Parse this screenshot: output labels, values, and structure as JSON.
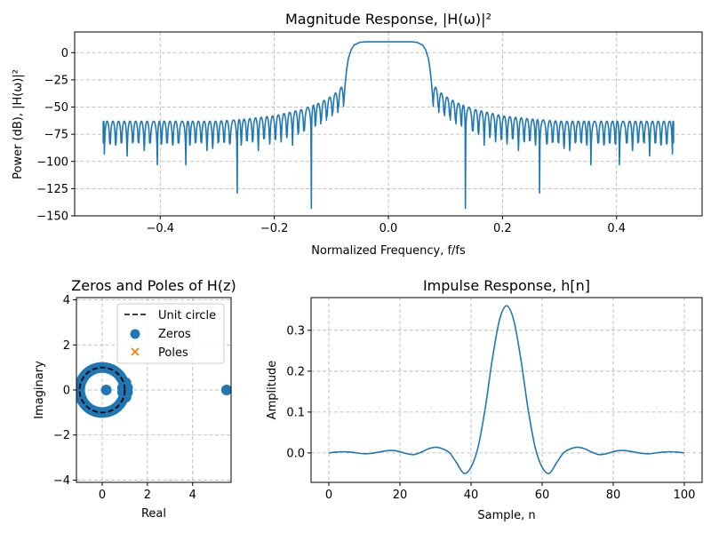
{
  "chart_data": [
    {
      "type": "line",
      "title": "Magnitude Response, |H(ω)|²",
      "xlabel": "Normalized Frequency, f/fs",
      "ylabel": "Power (dB), |H(ω)|²",
      "xlim": [
        -0.55,
        0.55
      ],
      "ylim": [
        -150,
        19
      ],
      "xticks": [
        "−0.4",
        "−0.2",
        "0.0",
        "0.2",
        "0.4"
      ],
      "xtick_values": [
        -0.4,
        -0.2,
        0.0,
        0.2,
        0.4
      ],
      "yticks": [
        "0",
        "−25",
        "−50",
        "−75",
        "−100",
        "−125",
        "−150"
      ],
      "ytick_values": [
        0,
        -25,
        -50,
        -75,
        -100,
        -125,
        -150
      ],
      "grid": true,
      "color": "#1f77b4",
      "symmetric": true,
      "passband": {
        "f": [
          0,
          0.04,
          0.05,
          0.06,
          0.065,
          0.07,
          0.073,
          0.076,
          0.078
        ],
        "db": [
          10,
          10,
          9.5,
          7,
          3,
          -5,
          -15,
          -30,
          -45
        ]
      },
      "sidelobe_peak_envelope": {
        "f": [
          0.078,
          0.09,
          0.1,
          0.12,
          0.15,
          0.2,
          0.25,
          0.3,
          0.5
        ],
        "db": [
          -29,
          -36,
          -40,
          -46,
          -52,
          -58,
          -61,
          -63,
          -63
        ]
      },
      "null_f": [
        0.078,
        0.088,
        0.098,
        0.108,
        0.118,
        0.128,
        0.135,
        0.148,
        0.158,
        0.168,
        0.178,
        0.188,
        0.198,
        0.208,
        0.218,
        0.228,
        0.238,
        0.248,
        0.258,
        0.265,
        0.278,
        0.288,
        0.298,
        0.308,
        0.318,
        0.328,
        0.338,
        0.348,
        0.355,
        0.368,
        0.378,
        0.388,
        0.398,
        0.405,
        0.418,
        0.428,
        0.438,
        0.448,
        0.458,
        0.468,
        0.478,
        0.488,
        0.498
      ],
      "null_db": [
        -45,
        -50,
        -55,
        -58,
        -62,
        -66,
        -143,
        -72,
        -75,
        -85,
        -78,
        -82,
        -80,
        -84,
        -78,
        -90,
        -82,
        -80,
        -85,
        -129,
        -84,
        -80,
        -82,
        -88,
        -90,
        -78,
        -82,
        -85,
        -103,
        -80,
        -85,
        -78,
        -84,
        -103,
        -80,
        -90,
        -82,
        -78,
        -95,
        -80,
        -85,
        -84,
        -93
      ]
    },
    {
      "type": "scatter",
      "title": "Zeros and Poles of H(z)",
      "xlabel": "Real",
      "ylabel": "Imaginary",
      "xlim": [
        -1.14,
        5.7
      ],
      "ylim": [
        -4.1,
        4.1
      ],
      "xticks": [
        "0",
        "2",
        "4"
      ],
      "xtick_values": [
        0,
        2,
        4
      ],
      "yticks": [
        "−4",
        "−2",
        "0",
        "2",
        "4"
      ],
      "ytick_values": [
        -4,
        -2,
        0,
        2,
        4
      ],
      "grid": true,
      "legend": {
        "position": "upper right",
        "entries": [
          "Unit circle",
          "Zeros",
          "Poles"
        ]
      },
      "unit_circle": {
        "color": "#000000",
        "style": "dashed"
      },
      "zeros_color": "#1f77b4",
      "poles_color": "#ff7f0e",
      "zero_angles_deg_on_unit_circle": [
        27,
        30.6,
        34.2,
        37.8,
        41.4,
        45,
        48.6,
        52.2,
        55.8,
        59.4,
        63,
        66.6,
        70.2,
        73.8,
        77.4,
        81,
        84.6,
        88.2,
        91.8,
        95.4,
        99,
        102.6,
        106.2,
        109.8,
        113.4,
        117,
        120.6,
        124.2,
        127.8,
        131.4,
        135,
        138.6,
        142.2,
        145.8,
        149.4,
        153,
        156.6,
        160.2,
        163.8,
        167.4,
        171,
        174.6,
        178.2
      ],
      "other_zeros": [
        [
          0.18,
          0
        ],
        [
          5.5,
          0
        ],
        [
          0.95,
          0.25
        ],
        [
          0.95,
          -0.25
        ],
        [
          1.05,
          0.32
        ],
        [
          1.05,
          -0.32
        ],
        [
          0.9,
          0.1
        ],
        [
          0.9,
          -0.1
        ],
        [
          1.12,
          0.1
        ],
        [
          1.12,
          -0.1
        ]
      ],
      "poles": []
    },
    {
      "type": "line",
      "title": "Impulse Response, h[n]",
      "xlabel": "Sample, n",
      "ylabel": "Amplitude",
      "xlim": [
        -5,
        105
      ],
      "ylim": [
        -0.072,
        0.38
      ],
      "xticks": [
        "0",
        "20",
        "40",
        "60",
        "80",
        "100"
      ],
      "xtick_values": [
        0,
        20,
        40,
        60,
        80,
        100
      ],
      "yticks": [
        "0.0",
        "0.1",
        "0.2",
        "0.3"
      ],
      "ytick_values": [
        0,
        0.1,
        0.2,
        0.3
      ],
      "grid": true,
      "color": "#1f77b4",
      "x": [
        0,
        2,
        4,
        6,
        8,
        10,
        12,
        14,
        16,
        18,
        20,
        22,
        24,
        26,
        28,
        30,
        32,
        34,
        36,
        38,
        40,
        42,
        44,
        46,
        48,
        50,
        52,
        54,
        56,
        58,
        60,
        62,
        64,
        66,
        68,
        70,
        72,
        74,
        76,
        78,
        80,
        82,
        84,
        86,
        88,
        90,
        92,
        94,
        96,
        98,
        100
      ],
      "y": [
        0,
        0.002,
        0.003,
        0.002,
        0,
        -0.002,
        -0.001,
        0.002,
        0.005,
        0.006,
        0.003,
        -0.002,
        -0.004,
        0.002,
        0.01,
        0.014,
        0.01,
        0.0,
        -0.025,
        -0.05,
        -0.035,
        0.015,
        0.11,
        0.23,
        0.325,
        0.36,
        0.325,
        0.23,
        0.11,
        0.015,
        -0.035,
        -0.05,
        -0.025,
        0.0,
        0.01,
        0.014,
        0.01,
        0.002,
        -0.004,
        -0.002,
        0.003,
        0.006,
        0.005,
        0.002,
        -0.001,
        -0.002,
        0,
        0.002,
        0.003,
        0.002,
        0
      ]
    }
  ]
}
